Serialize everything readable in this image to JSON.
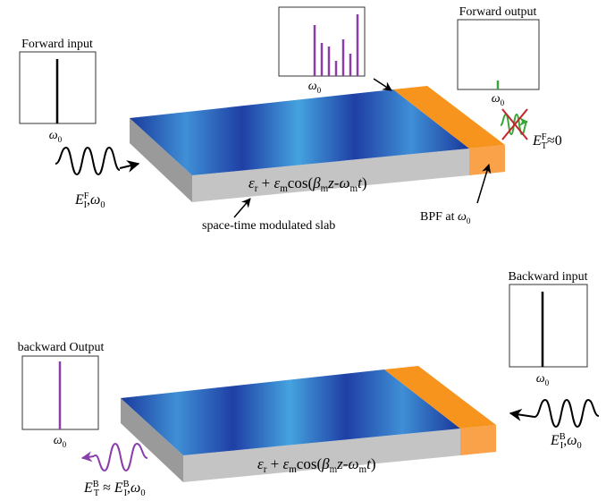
{
  "top": {
    "input_title": "Forward input",
    "input_freq": [
      {
        "t": "ω",
        "it": true
      },
      {
        "t": "0",
        "sub": true
      }
    ],
    "spectrum_freq": [
      {
        "t": "ω",
        "it": true
      },
      {
        "t": "0",
        "sub": true
      }
    ],
    "output_title": "Forward output",
    "output_freq": [
      {
        "t": "ω",
        "it": true
      },
      {
        "t": "0",
        "sub": true
      }
    ],
    "input_field": [
      {
        "t": "E",
        "it": true
      },
      {
        "t": "F",
        "sup": true
      },
      {
        "t": "I",
        "sub": true,
        "stack": true
      },
      {
        "t": ",",
        "it": false
      },
      {
        "t": "ω",
        "it": true
      },
      {
        "t": "0",
        "sub": true
      }
    ],
    "output_field": [
      {
        "t": "E",
        "it": true
      },
      {
        "t": "F",
        "sup": true
      },
      {
        "t": "T",
        "sub": true,
        "stack": true
      },
      {
        "t": "≈0",
        "it": false
      }
    ],
    "formula": [
      {
        "t": "ε",
        "it": true
      },
      {
        "t": "r",
        "sub": true
      },
      {
        "t": " + ",
        "it": false
      },
      {
        "t": "ε",
        "it": true
      },
      {
        "t": "m",
        "sub": true
      },
      {
        "t": "cos(",
        "it": false
      },
      {
        "t": "β",
        "it": true
      },
      {
        "t": "m",
        "sub": true
      },
      {
        "t": "z",
        "it": true
      },
      {
        "t": "-",
        "it": false
      },
      {
        "t": "ω",
        "it": true
      },
      {
        "t": "m",
        "sub": true
      },
      {
        "t": "t",
        "it": true
      },
      {
        "t": ")",
        "it": false
      }
    ],
    "slab_label": "space-time modulated slab",
    "bpf_label": [
      {
        "t": "BPF at ",
        "it": false
      },
      {
        "t": "ω",
        "it": true
      },
      {
        "t": "0",
        "sub": true
      }
    ]
  },
  "bottom": {
    "input_title": "Backward input",
    "input_freq": [
      {
        "t": "ω",
        "it": true
      },
      {
        "t": "0",
        "sub": true
      }
    ],
    "output_title": "backward Output",
    "output_freq": [
      {
        "t": "ω",
        "it": true
      },
      {
        "t": "0",
        "sub": true
      }
    ],
    "input_field": [
      {
        "t": "E",
        "it": true
      },
      {
        "t": "B",
        "sup": true
      },
      {
        "t": "I",
        "sub": true,
        "stack": true
      },
      {
        "t": ",",
        "it": false
      },
      {
        "t": "ω",
        "it": true
      },
      {
        "t": "0",
        "sub": true
      }
    ],
    "output_field": [
      {
        "t": "E",
        "it": true
      },
      {
        "t": "B",
        "sup": true
      },
      {
        "t": "T",
        "sub": true,
        "stack": true
      },
      {
        "t": " ≈ ",
        "it": false
      },
      {
        "t": "E",
        "it": true
      },
      {
        "t": "B",
        "sup": true
      },
      {
        "t": "I",
        "sub": true,
        "stack": true
      },
      {
        "t": ",",
        "it": false
      },
      {
        "t": "ω",
        "it": true
      },
      {
        "t": "0",
        "sub": true
      }
    ],
    "formula": [
      {
        "t": "ε",
        "it": true
      },
      {
        "t": "r",
        "sub": true
      },
      {
        "t": " + ",
        "it": false
      },
      {
        "t": "ε",
        "it": true
      },
      {
        "t": "m",
        "sub": true
      },
      {
        "t": "cos(",
        "it": false
      },
      {
        "t": "β",
        "it": true
      },
      {
        "t": "m",
        "sub": true
      },
      {
        "t": "z",
        "it": true
      },
      {
        "t": "-",
        "it": false
      },
      {
        "t": "ω",
        "it": true
      },
      {
        "t": "m",
        "sub": true
      },
      {
        "t": "t",
        "it": true
      },
      {
        "t": ")",
        "it": false
      }
    ]
  }
}
